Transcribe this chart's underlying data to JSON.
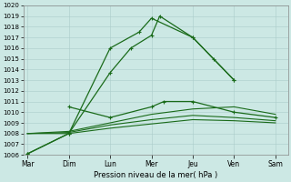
{
  "xlabel": "Pression niveau de la mer( hPa )",
  "days": [
    "Mar",
    "Dim",
    "Lun",
    "Mer",
    "Jeu",
    "Ven",
    "Sam"
  ],
  "bg_color": "#cce8e4",
  "grid_color": "#aaccca",
  "color": "#1a6b1a",
  "ylim": [
    1006,
    1020
  ],
  "xlim": [
    -0.1,
    6.3
  ],
  "lines": [
    {
      "x": [
        0,
        1,
        2,
        2.5,
        3,
        3.2,
        4,
        4.5,
        5
      ],
      "y": [
        1006.1,
        1008.0,
        1013.7,
        1016.0,
        1017.2,
        1019.0,
        1017.0,
        1015.0,
        1013.0
      ],
      "marker": true,
      "lw": 0.9,
      "ms": 3.5
    },
    {
      "x": [
        0,
        1,
        2,
        2.7,
        3,
        4,
        5
      ],
      "y": [
        1006.1,
        1008.0,
        1016.0,
        1017.5,
        1018.8,
        1017.0,
        1013.0
      ],
      "marker": true,
      "lw": 0.9,
      "ms": 3.5
    },
    {
      "x": [
        1,
        2,
        3,
        3.3,
        4,
        5,
        6
      ],
      "y": [
        1010.5,
        1009.5,
        1010.5,
        1011.0,
        1011.0,
        1010.0,
        1009.5
      ],
      "marker": true,
      "lw": 0.9,
      "ms": 3.0
    },
    {
      "x": [
        0,
        1,
        2,
        3,
        4,
        5,
        6
      ],
      "y": [
        1008.0,
        1008.2,
        1009.0,
        1009.8,
        1010.3,
        1010.5,
        1009.8
      ],
      "marker": false,
      "lw": 0.8,
      "ms": 0
    },
    {
      "x": [
        0,
        1,
        2,
        3,
        4,
        5,
        6
      ],
      "y": [
        1008.0,
        1008.1,
        1008.8,
        1009.3,
        1009.7,
        1009.5,
        1009.2
      ],
      "marker": false,
      "lw": 0.8,
      "ms": 0
    },
    {
      "x": [
        0,
        1,
        2,
        3,
        4,
        5,
        6
      ],
      "y": [
        1008.0,
        1008.0,
        1008.5,
        1008.9,
        1009.3,
        1009.2,
        1009.0
      ],
      "marker": false,
      "lw": 0.8,
      "ms": 0
    }
  ]
}
